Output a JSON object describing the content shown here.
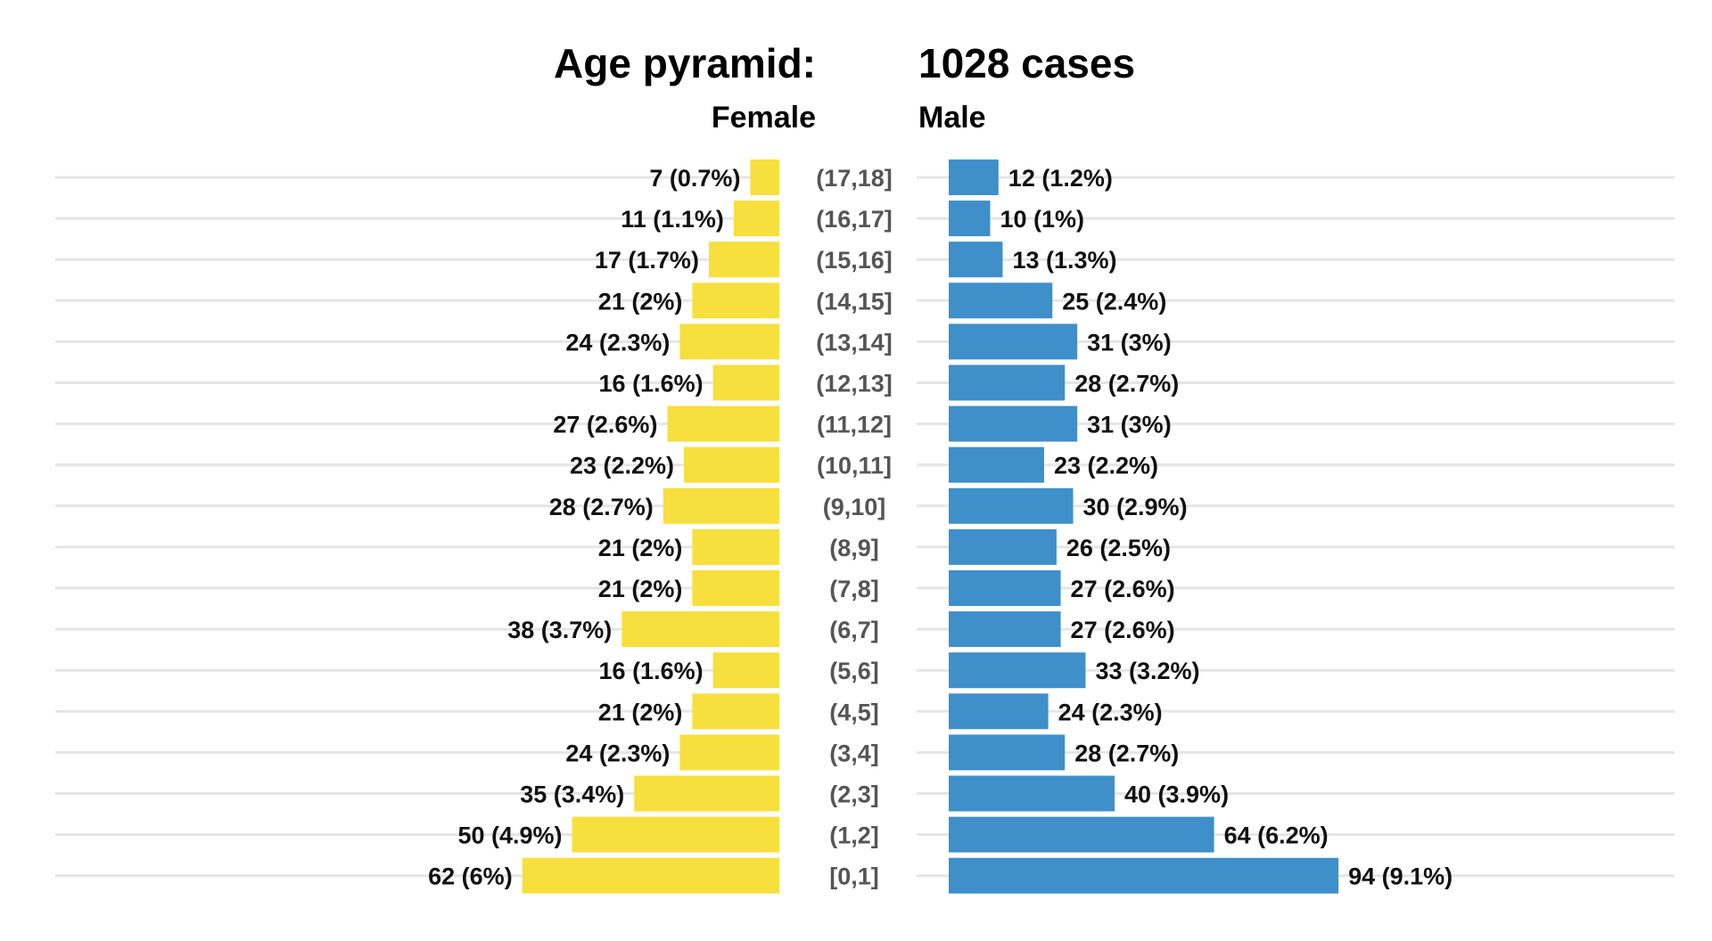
{
  "colors": {
    "female": "#f7df3e",
    "male": "#3f8fcb",
    "grid": "#e5e5e5"
  },
  "chart_data": {
    "type": "bar",
    "orientation": "horizontal-pyramid",
    "title_left": "Age pyramid:",
    "title_right": "1028 cases",
    "grid": true,
    "categories": [
      "[0,1]",
      "(1,2]",
      "(2,3]",
      "(3,4]",
      "(4,5]",
      "(5,6]",
      "(6,7]",
      "(7,8]",
      "(8,9]",
      "(9,10]",
      "(10,11]",
      "(11,12]",
      "(12,13]",
      "(13,14]",
      "(14,15]",
      "(15,16]",
      "(16,17]",
      "(17,18]"
    ],
    "series": [
      {
        "name": "Female",
        "side": "left",
        "values": [
          62,
          50,
          35,
          24,
          21,
          16,
          38,
          21,
          21,
          28,
          23,
          27,
          16,
          24,
          21,
          17,
          11,
          7
        ],
        "labels": [
          "62 (6%)",
          "50 (4.9%)",
          "35 (3.4%)",
          "24 (2.3%)",
          "21 (2%)",
          "16 (1.6%)",
          "38 (3.7%)",
          "21 (2%)",
          "21 (2%)",
          "28 (2.7%)",
          "23 (2.2%)",
          "27 (2.6%)",
          "16 (1.6%)",
          "24 (2.3%)",
          "21 (2%)",
          "17 (1.7%)",
          "11 (1.1%)",
          "7 (0.7%)"
        ]
      },
      {
        "name": "Male",
        "side": "right",
        "values": [
          94,
          64,
          40,
          28,
          24,
          33,
          27,
          27,
          26,
          30,
          23,
          31,
          28,
          31,
          25,
          13,
          10,
          12
        ],
        "labels": [
          "94 (9.1%)",
          "64 (6.2%)",
          "40 (3.9%)",
          "28 (2.7%)",
          "24 (2.3%)",
          "33 (3.2%)",
          "27 (2.6%)",
          "27 (2.6%)",
          "26 (2.5%)",
          "30 (2.9%)",
          "23 (2.2%)",
          "31 (3%)",
          "28 (2.7%)",
          "31 (3%)",
          "25 (2.4%)",
          "13 (1.3%)",
          "10 (1%)",
          "12 (1.2%)"
        ]
      }
    ]
  }
}
